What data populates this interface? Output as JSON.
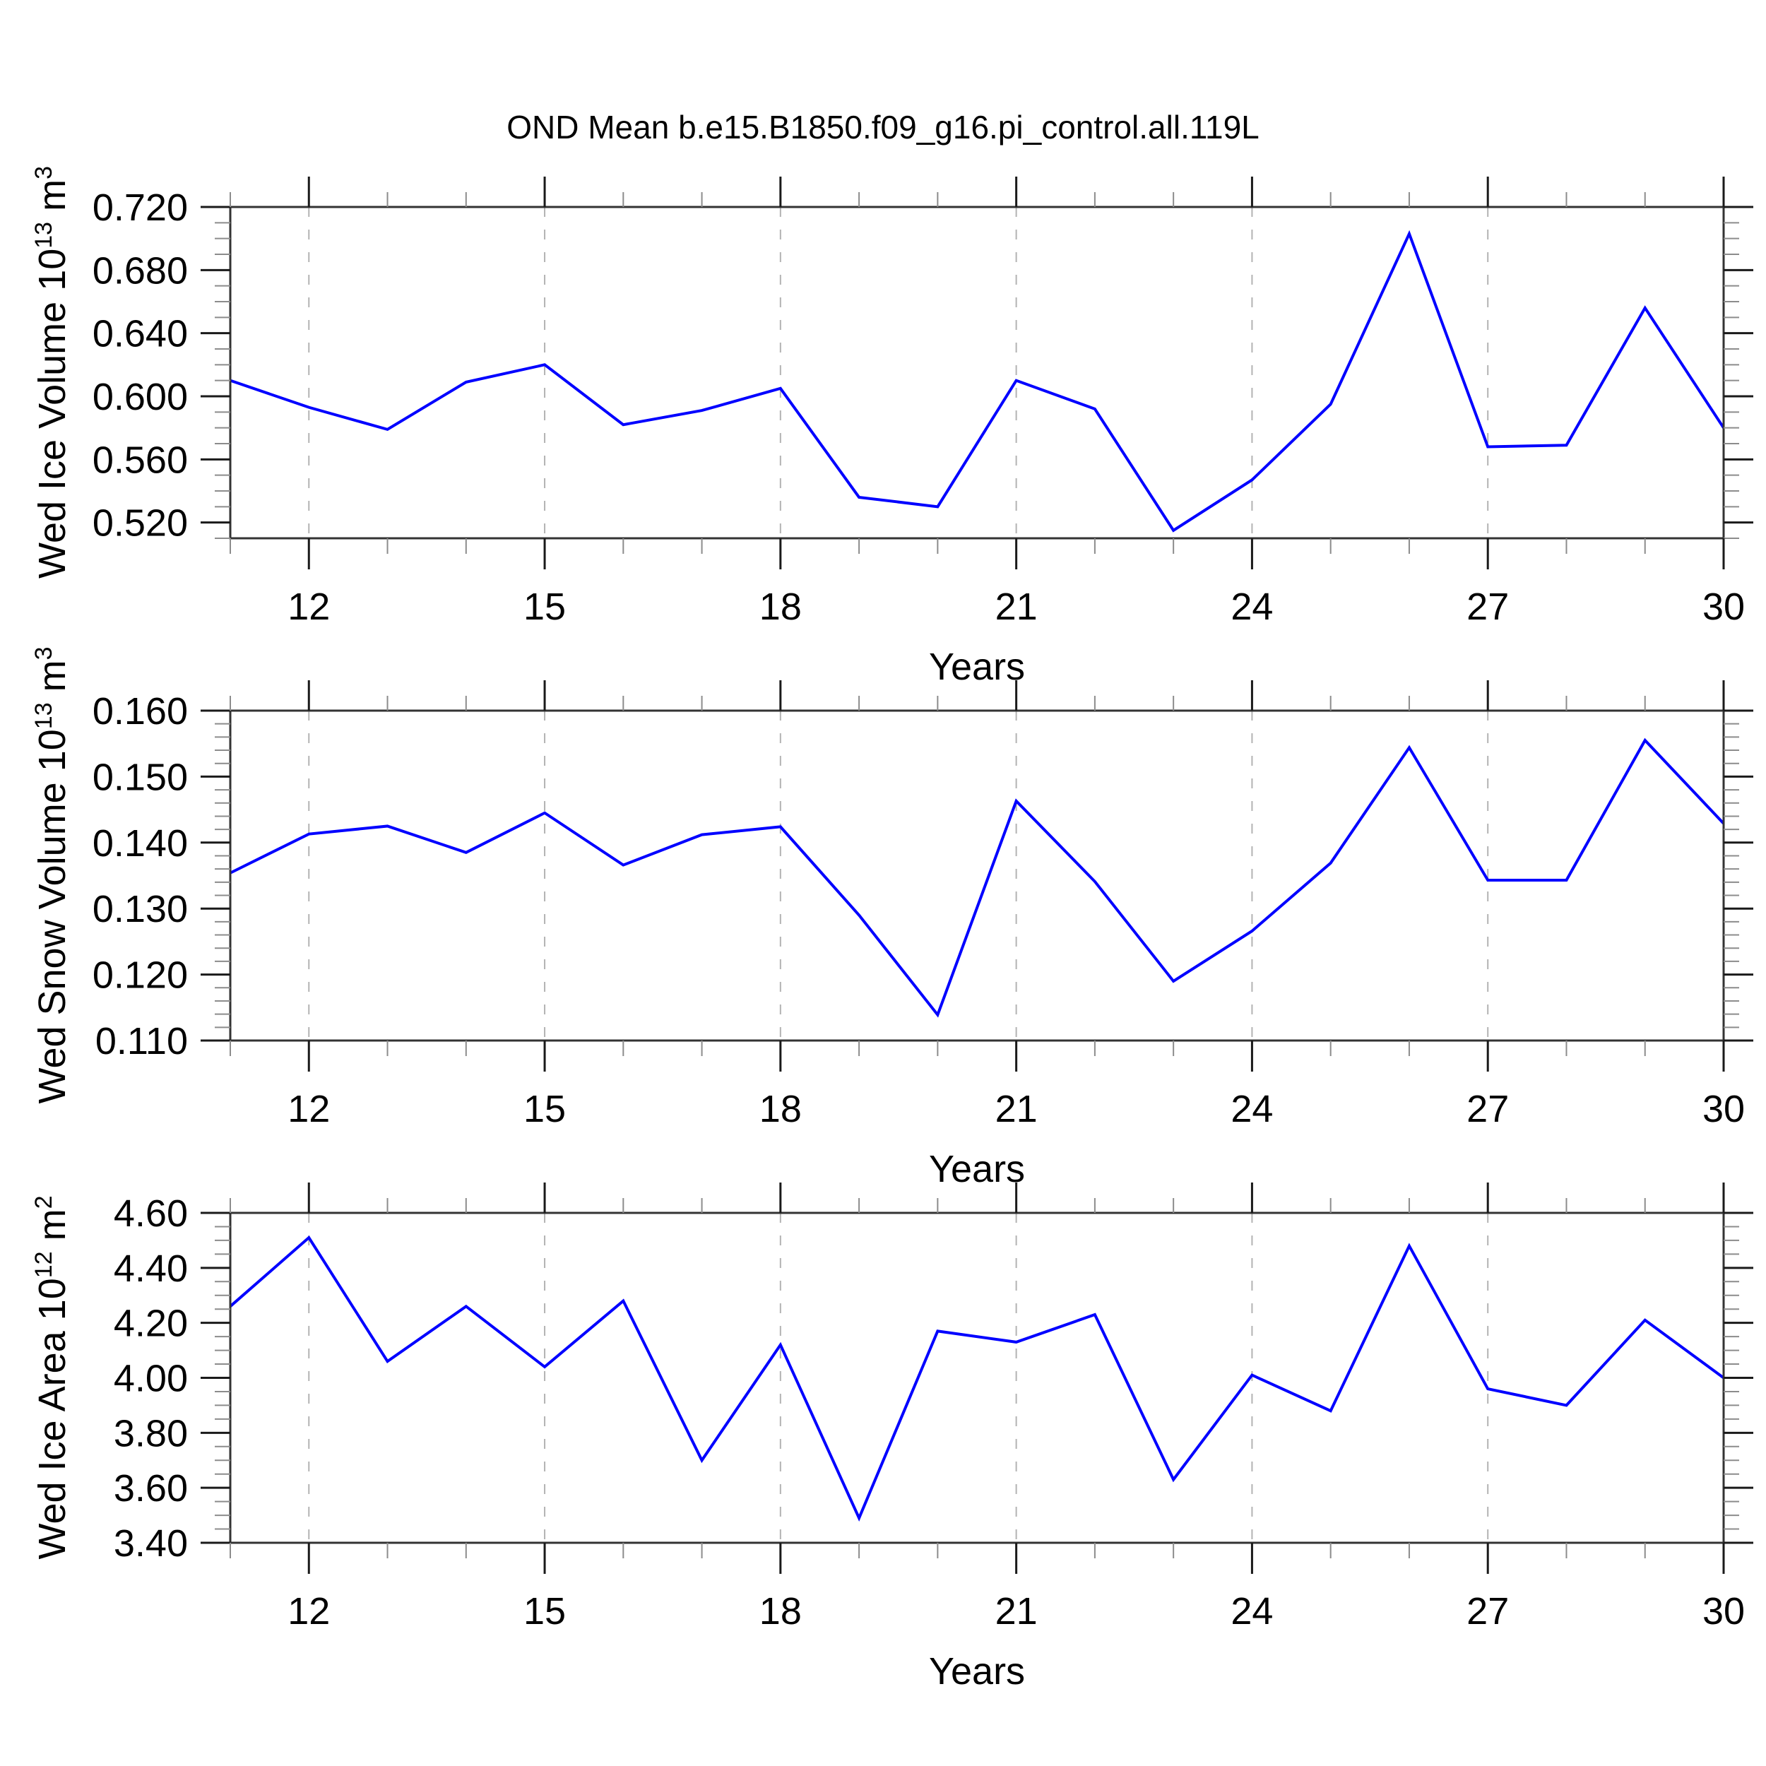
{
  "title": "OND Mean b.e15.B1850.f09_g16.pi_control.all.119L",
  "styles": {
    "line_color": "#0000ff",
    "axis_color": "#333333",
    "major_tick_color": "#1a1a1a",
    "minor_tick_color": "#8c8c8c",
    "grid_color": "#b3b3b3",
    "text_color": "#000000",
    "background": "#ffffff"
  },
  "chart_data": [
    {
      "type": "line",
      "title": "",
      "x_label": "Years",
      "y_label": "Wed Ice Volume 10^13 m^3",
      "y_label_parts": {
        "base": "Wed Ice Volume 10",
        "exp": "13",
        "unit": " m",
        "unit_exp": "3"
      },
      "x": [
        11,
        12,
        13,
        14,
        15,
        16,
        17,
        18,
        19,
        20,
        21,
        22,
        23,
        24,
        25,
        26,
        27,
        28,
        29,
        30
      ],
      "values": [
        0.61,
        0.593,
        0.579,
        0.609,
        0.62,
        0.582,
        0.591,
        0.605,
        0.536,
        0.53,
        0.61,
        0.592,
        0.515,
        0.547,
        0.595,
        0.703,
        0.568,
        0.569,
        0.656,
        0.58
      ],
      "xlim": [
        11,
        30
      ],
      "ylim": [
        0.51,
        0.72
      ],
      "x_major_ticks": [
        12,
        15,
        18,
        21,
        24,
        27,
        30
      ],
      "x_tick_labels": [
        "12",
        "15",
        "18",
        "21",
        "24",
        "27",
        "30"
      ],
      "x_minor_step": 1,
      "y_major_ticks": [
        0.52,
        0.56,
        0.6,
        0.64,
        0.68,
        0.72
      ],
      "y_tick_labels": [
        "0.520",
        "0.560",
        "0.600",
        "0.640",
        "0.680",
        "0.720"
      ],
      "y_minor_step": 0.01,
      "grid_x": [
        12,
        15,
        18,
        21,
        24,
        27
      ],
      "grid": "vertical-dashed",
      "legend_position": "none"
    },
    {
      "type": "line",
      "title": "",
      "x_label": "Years",
      "y_label": "Wed Snow Volume 10^13 m^3",
      "y_label_parts": {
        "base": "Wed Snow Volume 10",
        "exp": "13",
        "unit": " m",
        "unit_exp": "3"
      },
      "x": [
        11,
        12,
        13,
        14,
        15,
        16,
        17,
        18,
        19,
        20,
        21,
        22,
        23,
        24,
        25,
        26,
        27,
        28,
        29,
        30
      ],
      "values": [
        0.1354,
        0.1413,
        0.1425,
        0.1385,
        0.1445,
        0.1366,
        0.1412,
        0.1424,
        0.129,
        0.1139,
        0.1463,
        0.1341,
        0.119,
        0.1266,
        0.1369,
        0.1544,
        0.1343,
        0.1343,
        0.1555,
        0.1429
      ],
      "xlim": [
        11,
        30
      ],
      "ylim": [
        0.11,
        0.16
      ],
      "x_major_ticks": [
        12,
        15,
        18,
        21,
        24,
        27,
        30
      ],
      "x_tick_labels": [
        "12",
        "15",
        "18",
        "21",
        "24",
        "27",
        "30"
      ],
      "x_minor_step": 1,
      "y_major_ticks": [
        0.11,
        0.12,
        0.13,
        0.14,
        0.15,
        0.16
      ],
      "y_tick_labels": [
        "0.110",
        "0.120",
        "0.130",
        "0.140",
        "0.150",
        "0.160"
      ],
      "y_minor_step": 0.002,
      "grid_x": [
        12,
        15,
        18,
        21,
        24,
        27
      ],
      "grid": "vertical-dashed",
      "legend_position": "none"
    },
    {
      "type": "line",
      "title": "",
      "x_label": "Years",
      "y_label": "Wed Ice Area 10^12 m^2",
      "y_label_parts": {
        "base": "Wed Ice Area 10",
        "exp": "12",
        "unit": " m",
        "unit_exp": "2"
      },
      "x": [
        11,
        12,
        13,
        14,
        15,
        16,
        17,
        18,
        19,
        20,
        21,
        22,
        23,
        24,
        25,
        26,
        27,
        28,
        29,
        30
      ],
      "values": [
        4.26,
        4.51,
        4.06,
        4.26,
        4.04,
        4.28,
        3.7,
        4.12,
        3.49,
        4.17,
        4.13,
        4.23,
        3.63,
        4.01,
        3.88,
        4.48,
        3.96,
        3.9,
        4.21,
        4.0
      ],
      "xlim": [
        11,
        30
      ],
      "ylim": [
        3.4,
        4.6
      ],
      "x_major_ticks": [
        12,
        15,
        18,
        21,
        24,
        27,
        30
      ],
      "x_tick_labels": [
        "12",
        "15",
        "18",
        "21",
        "24",
        "27",
        "30"
      ],
      "x_minor_step": 1,
      "y_major_ticks": [
        3.4,
        3.6,
        3.8,
        4.0,
        4.2,
        4.4,
        4.6
      ],
      "y_tick_labels": [
        "3.40",
        "3.60",
        "3.80",
        "4.00",
        "4.20",
        "4.40",
        "4.60"
      ],
      "y_minor_step": 0.05,
      "grid_x": [
        12,
        15,
        18,
        21,
        24,
        27
      ],
      "grid": "vertical-dashed",
      "legend_position": "none"
    }
  ]
}
